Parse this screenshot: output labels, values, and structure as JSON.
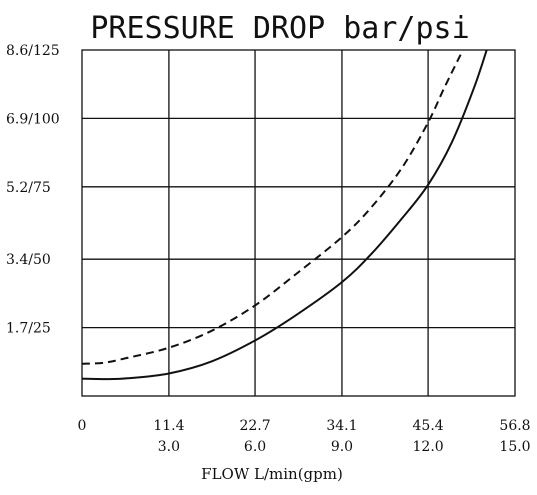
{
  "chart_data": {
    "type": "line",
    "title": "PRESSURE DROP bar/psi",
    "xlabel": "FLOW L/min(gpm)",
    "ylabel": "",
    "x_ticks": [
      {
        "value": 0,
        "primary": "0",
        "secondary": ""
      },
      {
        "value": 11.4,
        "primary": "11.4",
        "secondary": "3.0"
      },
      {
        "value": 22.7,
        "primary": "22.7",
        "secondary": "6.0"
      },
      {
        "value": 34.1,
        "primary": "34.1",
        "secondary": "9.0"
      },
      {
        "value": 45.4,
        "primary": "45.4",
        "secondary": "12.0"
      },
      {
        "value": 56.8,
        "primary": "56.8",
        "secondary": "15.0"
      }
    ],
    "y_ticks": [
      {
        "value": 1.7,
        "label": "1.7/25"
      },
      {
        "value": 3.4,
        "label": "3.4/50"
      },
      {
        "value": 5.2,
        "label": "5.2/75"
      },
      {
        "value": 6.9,
        "label": "6.9/100"
      },
      {
        "value": 8.6,
        "label": "8.6/125"
      }
    ],
    "xlim": [
      0,
      56.8
    ],
    "ylim": [
      0,
      8.6
    ],
    "grid": true,
    "series": [
      {
        "style": "solid",
        "x": [
          0,
          3,
          6,
          11.4,
          17,
          22.7,
          28,
          34.1,
          38,
          42,
          45.4,
          48.5,
          51.5,
          53.5
        ],
        "y": [
          0.43,
          0.42,
          0.44,
          0.56,
          0.86,
          1.38,
          2.0,
          2.83,
          3.54,
          4.42,
          5.25,
          6.3,
          7.7,
          8.85
        ]
      },
      {
        "style": "dashed",
        "x": [
          0,
          3,
          6,
          11.4,
          17,
          22.7,
          28,
          34.1,
          38,
          42,
          45.4,
          47.5,
          49.5,
          50.8
        ],
        "y": [
          0.8,
          0.83,
          0.95,
          1.2,
          1.62,
          2.25,
          3.02,
          3.95,
          4.7,
          5.68,
          6.8,
          7.65,
          8.42,
          8.9
        ]
      }
    ]
  }
}
